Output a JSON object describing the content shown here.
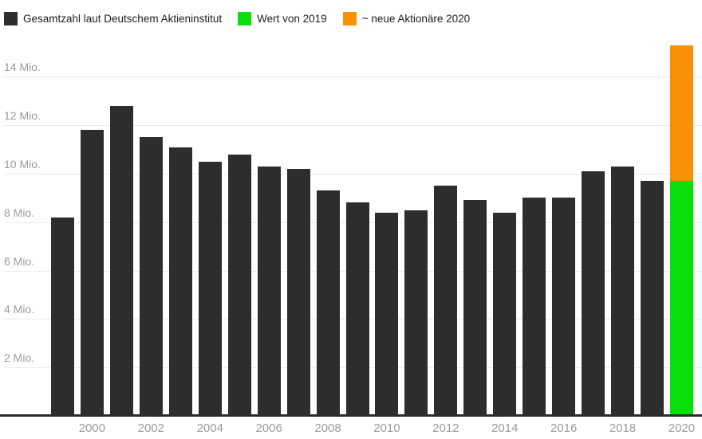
{
  "page": {
    "background": "#ffffff"
  },
  "chart_data": {
    "type": "bar",
    "stacked": true,
    "title": "",
    "unit": "Mio.",
    "categories": [
      1999,
      2000,
      2001,
      2002,
      2003,
      2004,
      2005,
      2006,
      2007,
      2008,
      2009,
      2010,
      2011,
      2012,
      2013,
      2014,
      2015,
      2016,
      2017,
      2018,
      2019,
      2020
    ],
    "series": [
      {
        "key": "gesamtzahl",
        "name": "Gesamtzahl laut Deutschem Aktieninstitut",
        "color": "#2d2d2d",
        "values": [
          8.2,
          11.8,
          12.8,
          11.5,
          11.1,
          10.5,
          10.8,
          10.3,
          10.2,
          9.3,
          8.8,
          8.4,
          8.5,
          9.5,
          8.9,
          8.4,
          9.0,
          9.0,
          10.1,
          10.3,
          9.7,
          null
        ]
      },
      {
        "key": "wert-von-2019",
        "name": "Wert von 2019",
        "color": "#0adf0a",
        "values": [
          null,
          null,
          null,
          null,
          null,
          null,
          null,
          null,
          null,
          null,
          null,
          null,
          null,
          null,
          null,
          null,
          null,
          null,
          null,
          null,
          null,
          9.7
        ]
      },
      {
        "key": "neue-aktionaere-2020",
        "name": "~ neue Aktionäre 2020",
        "color": "#f89103",
        "values": [
          null,
          null,
          null,
          null,
          null,
          null,
          null,
          null,
          null,
          null,
          null,
          null,
          null,
          null,
          null,
          null,
          null,
          null,
          null,
          null,
          null,
          5.6
        ]
      }
    ],
    "x_tick_labels": [
      "2000",
      "2002",
      "2004",
      "2006",
      "2008",
      "2010",
      "2012",
      "2014",
      "2016",
      "2018",
      "2020"
    ],
    "y_ticks": [
      2,
      4,
      6,
      8,
      10,
      12,
      14
    ],
    "y_tick_suffix": " Mio.",
    "ylim": [
      0,
      15.8
    ],
    "grid": "horizontal",
    "legend_position": "top-left",
    "axis_text_color": "#9b9b9b",
    "gridline_color": "#ebebeb",
    "baseline_color": "#2b2b2b"
  }
}
